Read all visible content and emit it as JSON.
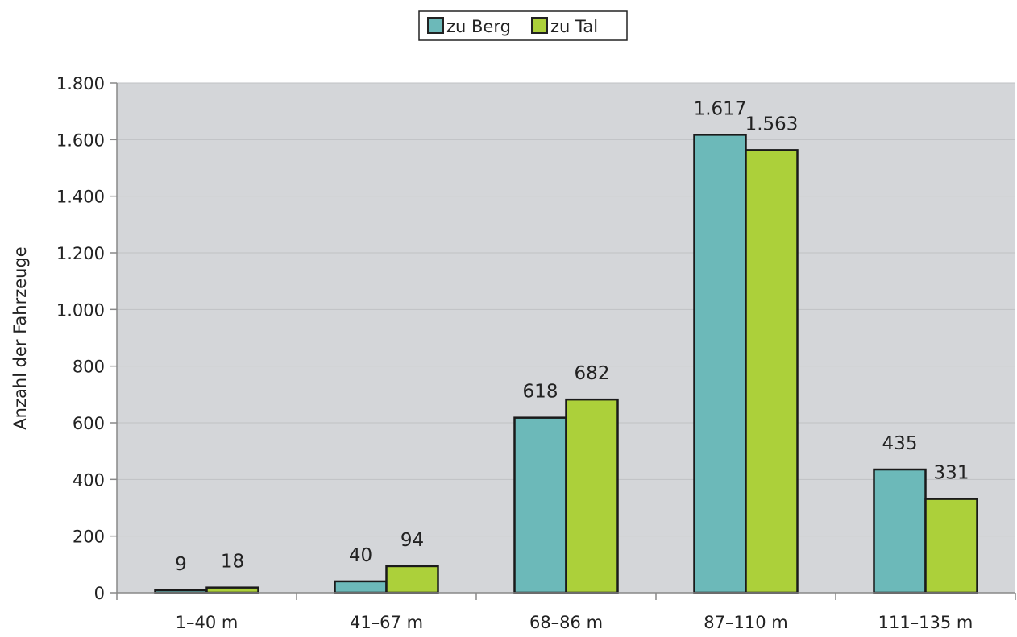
{
  "chart_data": {
    "type": "bar",
    "title": "",
    "xlabel": "",
    "ylabel": "Anzahl der Fahrzeuge",
    "categories": [
      "1–40 m",
      "41–67 m",
      "68–86 m",
      "87–110 m",
      "111–135 m"
    ],
    "series": [
      {
        "name": "zu Berg",
        "color": "#6cb9b9",
        "values": [
          9,
          40,
          618,
          1617,
          435
        ],
        "labels": [
          "9",
          "40",
          "618",
          "1.617",
          "435"
        ]
      },
      {
        "name": "zu Tal",
        "color": "#acd03a",
        "values": [
          18,
          94,
          682,
          1563,
          331
        ],
        "labels": [
          "18",
          "94",
          "682",
          "1.563",
          "331"
        ]
      }
    ],
    "ylim": [
      0,
      1800
    ],
    "yticks": [
      0,
      200,
      400,
      600,
      800,
      1000,
      1200,
      1400,
      1600,
      1800
    ],
    "ytick_labels": [
      "0",
      "200",
      "400",
      "600",
      "800",
      "1.000",
      "1.200",
      "1.400",
      "1.600",
      "1.800"
    ],
    "grid": true,
    "legend_position": "top-center",
    "plot_background": "#d4d6d9"
  }
}
